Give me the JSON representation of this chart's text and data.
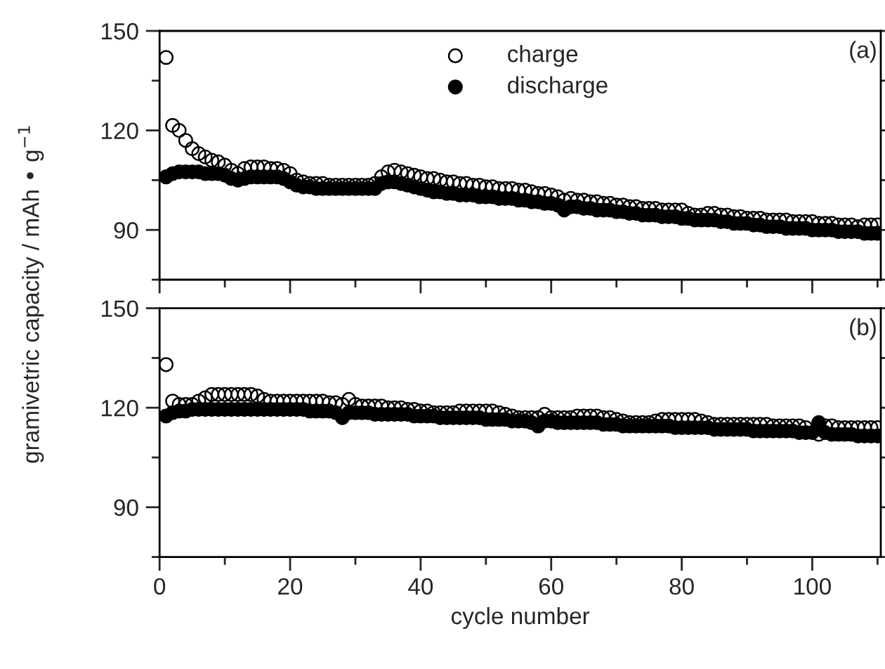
{
  "chart_data": [
    {
      "type": "scatter",
      "ylabel": "gramivetric capacity / mAh • g$^{−1}$",
      "annotations": [
        "(a)"
      ],
      "legend": "top",
      "marker": "circle",
      "tick_labels": "y",
      "xlim": [
        0,
        110.5
      ],
      "xticks": [
        {
          "value": 0,
          "label": null
        },
        {
          "value": 20,
          "label": null
        },
        {
          "value": 40,
          "label": null
        },
        {
          "value": 60,
          "label": null
        },
        {
          "value": 80,
          "label": null
        },
        {
          "value": 100,
          "label": null
        }
      ],
      "ylim": [
        75,
        150
      ],
      "yticks": [
        90,
        120,
        150
      ],
      "x": [
        1,
        2,
        3,
        4,
        5,
        6,
        7,
        8,
        9,
        10,
        11,
        12,
        13,
        14,
        15,
        16,
        17,
        18,
        19,
        20,
        21,
        22,
        23,
        24,
        25,
        26,
        27,
        28,
        29,
        30,
        31,
        32,
        33,
        34,
        35,
        36,
        37,
        38,
        39,
        40,
        41,
        42,
        43,
        44,
        45,
        46,
        47,
        48,
        49,
        50,
        51,
        52,
        53,
        54,
        55,
        56,
        57,
        58,
        59,
        60,
        61,
        62,
        63,
        64,
        65,
        66,
        67,
        68,
        69,
        70,
        71,
        72,
        73,
        74,
        75,
        76,
        77,
        78,
        79,
        80,
        81,
        82,
        83,
        84,
        85,
        86,
        87,
        88,
        89,
        90,
        91,
        92,
        93,
        94,
        95,
        96,
        97,
        98,
        99,
        100,
        101,
        102,
        103,
        104,
        105,
        106,
        107,
        108,
        109,
        110
      ],
      "series": [
        {
          "name": "charge",
          "color": "#000000",
          "values": [
            142,
            121.5,
            120,
            117,
            114.5,
            113,
            112,
            111,
            110.5,
            109.5,
            108,
            107,
            108.5,
            109,
            109,
            109,
            108.5,
            108.5,
            108,
            107,
            105,
            104.5,
            104,
            104,
            104,
            103.5,
            103.5,
            103.5,
            103.5,
            103.5,
            103.5,
            103.5,
            104,
            106,
            107.5,
            108,
            107.5,
            107,
            106.5,
            106,
            105.5,
            105.5,
            105,
            104.5,
            104.5,
            104,
            104,
            103.5,
            103.5,
            103,
            103,
            102.5,
            102.5,
            102.5,
            102,
            102,
            101.5,
            101,
            101,
            100.5,
            100,
            99,
            99.5,
            99,
            99,
            98.5,
            98.5,
            98,
            98,
            97.5,
            97.5,
            97,
            97,
            96.5,
            96.5,
            96.5,
            96,
            96,
            96,
            96,
            95,
            94.5,
            94.5,
            95,
            95,
            94.5,
            94.5,
            94,
            94,
            93.5,
            93.5,
            93.5,
            93,
            93,
            93,
            93,
            92.5,
            92.5,
            92.5,
            92.5,
            92,
            92,
            92,
            91.5,
            91.5,
            91.5,
            91,
            91.5,
            91.5,
            91.5
          ]
        },
        {
          "name": "discharge",
          "color": "#000000",
          "values": [
            106,
            107,
            107.5,
            107.5,
            107.5,
            107.5,
            107,
            107,
            107,
            106.5,
            105.5,
            105,
            105.5,
            106,
            106,
            106,
            106,
            106,
            105.5,
            104.5,
            103.5,
            103,
            103,
            102.5,
            102.5,
            102.5,
            102.5,
            102.5,
            102.5,
            102.5,
            102.5,
            102.5,
            102.5,
            104,
            104.5,
            104.5,
            104,
            103.5,
            103,
            102.5,
            102,
            101.5,
            101.5,
            101,
            101,
            100.5,
            100.5,
            100.5,
            100,
            100,
            100,
            99.5,
            99.5,
            99.5,
            99,
            99,
            98.5,
            98.5,
            98,
            98,
            97.5,
            96,
            97,
            97,
            96.5,
            96.5,
            96,
            96,
            96,
            95.5,
            95.5,
            95,
            95,
            94.5,
            94.5,
            94.5,
            94,
            94,
            94,
            93.5,
            93.5,
            93,
            93,
            93,
            93,
            92.5,
            92.5,
            92,
            92,
            92,
            91.5,
            91.5,
            91,
            91,
            91,
            90.5,
            90.5,
            90.5,
            90.5,
            90,
            90,
            90,
            90,
            89.5,
            89.5,
            89.5,
            89.5,
            89,
            89,
            89
          ]
        }
      ]
    },
    {
      "type": "scatter",
      "xlabel": "cycle number",
      "annotations": [
        "(b)"
      ],
      "marker": "circle",
      "xlim": [
        0,
        110.5
      ],
      "xticks": [
        0,
        20,
        40,
        60,
        80,
        100
      ],
      "ylim": [
        75,
        150
      ],
      "yticks": [
        90,
        120,
        150
      ],
      "x": [
        1,
        2,
        3,
        4,
        5,
        6,
        7,
        8,
        9,
        10,
        11,
        12,
        13,
        14,
        15,
        16,
        17,
        18,
        19,
        20,
        21,
        22,
        23,
        24,
        25,
        26,
        27,
        28,
        29,
        30,
        31,
        32,
        33,
        34,
        35,
        36,
        37,
        38,
        39,
        40,
        41,
        42,
        43,
        44,
        45,
        46,
        47,
        48,
        49,
        50,
        51,
        52,
        53,
        54,
        55,
        56,
        57,
        58,
        59,
        60,
        61,
        62,
        63,
        64,
        65,
        66,
        67,
        68,
        69,
        70,
        71,
        72,
        73,
        74,
        75,
        76,
        77,
        78,
        79,
        80,
        81,
        82,
        83,
        84,
        85,
        86,
        87,
        88,
        89,
        90,
        91,
        92,
        93,
        94,
        95,
        96,
        97,
        98,
        99,
        100,
        101,
        102,
        103,
        104,
        105,
        106,
        107,
        108,
        109,
        110
      ],
      "series": [
        {
          "color": "#000000",
          "values": [
            133,
            122,
            121,
            121,
            121,
            122,
            123,
            124,
            124,
            124,
            124,
            124,
            124,
            124,
            123.5,
            122.5,
            122,
            122,
            122,
            122,
            122,
            122,
            122,
            122,
            122,
            121.5,
            121.5,
            121,
            122.5,
            121,
            120.5,
            120.5,
            120.5,
            120.5,
            120,
            120,
            120,
            119.5,
            119.5,
            119,
            119,
            118.5,
            118.5,
            118.5,
            118.5,
            119,
            119,
            119,
            119,
            119,
            119,
            118.5,
            118,
            117.5,
            117,
            117,
            117,
            117,
            118,
            117,
            117,
            117,
            117,
            117.5,
            117.5,
            117.5,
            117.5,
            117,
            117,
            116.5,
            116,
            115.5,
            115.5,
            115.5,
            115.5,
            116,
            116.5,
            116.5,
            116.5,
            116.5,
            116.5,
            116.5,
            116,
            115.5,
            115,
            115,
            115,
            115,
            115,
            115,
            115,
            115,
            115,
            114.5,
            114.5,
            114.5,
            114.5,
            114.5,
            114,
            null,
            112,
            114.5,
            114.5,
            114,
            114,
            114,
            114,
            114,
            114,
            114
          ]
        },
        {
          "color": "#000000",
          "values": [
            117.5,
            118.5,
            119,
            119,
            119.5,
            119.5,
            119.5,
            119.5,
            119.5,
            119.5,
            119.5,
            119.5,
            119.5,
            119.5,
            119.5,
            119.5,
            119.5,
            119.5,
            119.5,
            119.5,
            119.5,
            119.5,
            119,
            119,
            119,
            119,
            118.5,
            117,
            118.5,
            118.5,
            118.5,
            118.5,
            118,
            118,
            118,
            118,
            118,
            118,
            117.5,
            117.5,
            117.5,
            117.5,
            117,
            117,
            117,
            117,
            117,
            117,
            117,
            116.5,
            116.5,
            116.5,
            116.5,
            116,
            116,
            116,
            115.5,
            114.5,
            116,
            116,
            115.5,
            115.5,
            115.5,
            115.5,
            115.5,
            115.5,
            115.5,
            115,
            115,
            115,
            114.5,
            114.5,
            114.5,
            114.5,
            114.5,
            114.5,
            114.5,
            114.5,
            114,
            114,
            114,
            114,
            114,
            114,
            113.5,
            113.5,
            113.5,
            113.5,
            113.5,
            113.5,
            113,
            113,
            113,
            113,
            113,
            113,
            113,
            112.5,
            112.5,
            112.5,
            115.5,
            112.5,
            112,
            112,
            112,
            112,
            111.5,
            111.5,
            111.5,
            111.5
          ]
        }
      ]
    }
  ]
}
